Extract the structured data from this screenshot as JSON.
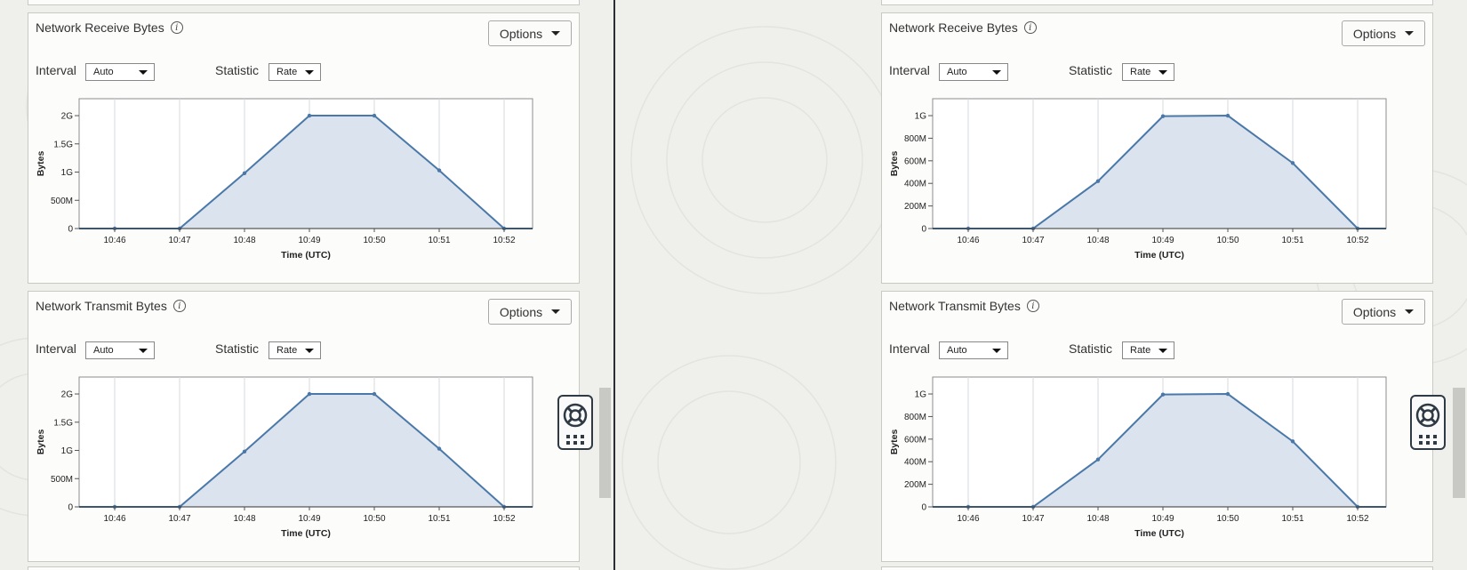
{
  "colors": {
    "line": "#4a78a8",
    "area": "#dbe3ee",
    "grid": "#d4d8de",
    "background": "#efefec",
    "panel": "#fcfcfb"
  },
  "panes": [
    {
      "panels": [
        {
          "title": "Network Receive Bytes",
          "options_label": "Options",
          "interval_label": "Interval",
          "interval_value": "Auto",
          "statistic_label": "Statistic",
          "statistic_value": "Rate",
          "chart_data": {
            "type": "area",
            "xlabel": "Time (UTC)",
            "ylabel": "Bytes",
            "x": [
              "10:46",
              "10:47",
              "10:48",
              "10:49",
              "10:50",
              "10:51",
              "10:52"
            ],
            "values": [
              0,
              0,
              980000000,
              2000000000,
              2000000000,
              1030000000,
              0
            ],
            "ylim": [
              0,
              2300000000
            ],
            "yticks": [
              0,
              500000000,
              1000000000,
              1500000000,
              2000000000
            ],
            "ytick_labels": [
              "0",
              "500M",
              "1G",
              "1.5G",
              "2G"
            ],
            "grid": "vertical"
          }
        },
        {
          "title": "Network Transmit Bytes",
          "options_label": "Options",
          "interval_label": "Interval",
          "interval_value": "Auto",
          "statistic_label": "Statistic",
          "statistic_value": "Rate",
          "chart_data": {
            "type": "area",
            "xlabel": "Time (UTC)",
            "ylabel": "Bytes",
            "x": [
              "10:46",
              "10:47",
              "10:48",
              "10:49",
              "10:50",
              "10:51",
              "10:52"
            ],
            "values": [
              0,
              0,
              980000000,
              2000000000,
              2000000000,
              1030000000,
              0
            ],
            "ylim": [
              0,
              2300000000
            ],
            "yticks": [
              0,
              500000000,
              1000000000,
              1500000000,
              2000000000
            ],
            "ytick_labels": [
              "0",
              "500M",
              "1G",
              "1.5G",
              "2G"
            ],
            "grid": "vertical"
          }
        }
      ]
    },
    {
      "panels": [
        {
          "title": "Network Receive Bytes",
          "options_label": "Options",
          "interval_label": "Interval",
          "interval_value": "Auto",
          "statistic_label": "Statistic",
          "statistic_value": "Rate",
          "chart_data": {
            "type": "area",
            "xlabel": "Time (UTC)",
            "ylabel": "Bytes",
            "x": [
              "10:46",
              "10:47",
              "10:48",
              "10:49",
              "10:50",
              "10:51",
              "10:52"
            ],
            "values": [
              0,
              0,
              420000000,
              995000000,
              1000000000,
              580000000,
              0
            ],
            "ylim": [
              0,
              1150000000
            ],
            "yticks": [
              0,
              200000000,
              400000000,
              600000000,
              800000000,
              1000000000
            ],
            "ytick_labels": [
              "0",
              "200M",
              "400M",
              "600M",
              "800M",
              "1G"
            ],
            "grid": "vertical"
          }
        },
        {
          "title": "Network Transmit Bytes",
          "options_label": "Options",
          "interval_label": "Interval",
          "interval_value": "Auto",
          "statistic_label": "Statistic",
          "statistic_value": "Rate",
          "chart_data": {
            "type": "area",
            "xlabel": "Time (UTC)",
            "ylabel": "Bytes",
            "x": [
              "10:46",
              "10:47",
              "10:48",
              "10:49",
              "10:50",
              "10:51",
              "10:52"
            ],
            "values": [
              0,
              0,
              420000000,
              995000000,
              1000000000,
              580000000,
              0
            ],
            "ylim": [
              0,
              1150000000
            ],
            "yticks": [
              0,
              200000000,
              400000000,
              600000000,
              800000000,
              1000000000
            ],
            "ytick_labels": [
              "0",
              "200M",
              "400M",
              "600M",
              "800M",
              "1G"
            ],
            "grid": "vertical"
          }
        }
      ]
    }
  ],
  "help_widget": {
    "icons": [
      "lifebuoy-icon",
      "grid-dots-icon"
    ]
  }
}
